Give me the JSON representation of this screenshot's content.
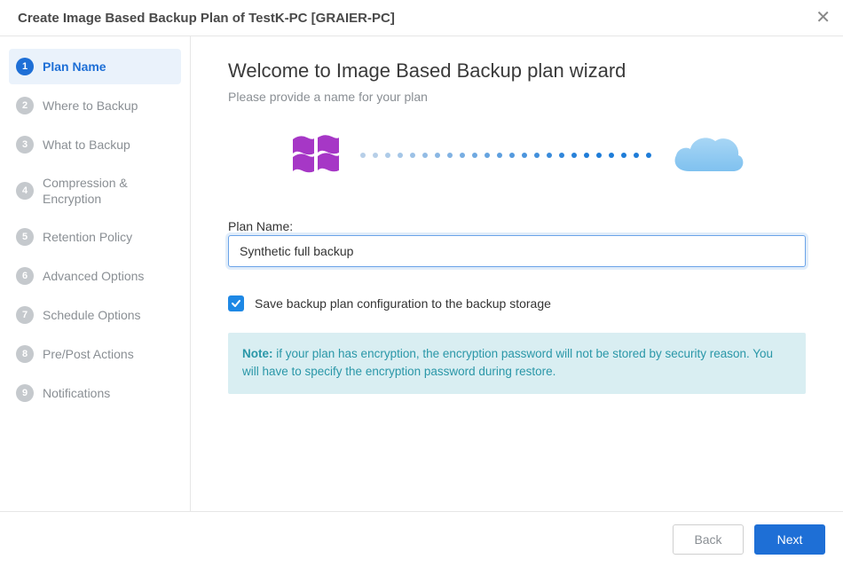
{
  "window": {
    "title": "Create Image Based Backup Plan of TestK-PC [GRAIER-PC]"
  },
  "sidebar": {
    "steps": [
      {
        "num": "1",
        "label": "Plan Name",
        "active": true
      },
      {
        "num": "2",
        "label": "Where to Backup",
        "active": false
      },
      {
        "num": "3",
        "label": "What to Backup",
        "active": false
      },
      {
        "num": "4",
        "label": "Compression & Encryption",
        "active": false
      },
      {
        "num": "5",
        "label": "Retention Policy",
        "active": false
      },
      {
        "num": "6",
        "label": "Advanced Options",
        "active": false
      },
      {
        "num": "7",
        "label": "Schedule Options",
        "active": false
      },
      {
        "num": "8",
        "label": "Pre/Post Actions",
        "active": false
      },
      {
        "num": "9",
        "label": "Notifications",
        "active": false
      }
    ]
  },
  "main": {
    "title": "Welcome to Image Based Backup plan wizard",
    "subtitle": "Please provide a name for your plan",
    "plan_name_label": "Plan Name:",
    "plan_name_value": "Synthetic full backup",
    "save_config_checked": true,
    "save_config_label": "Save backup plan configuration to the backup storage",
    "note_prefix": "Note:",
    "note_text": " if your plan has encryption, the encryption password will not be stored by security reason. You will have to specify the encryption password during restore."
  },
  "illustration": {
    "win_logo_color": "#a637c6",
    "cloud_color_top": "#a8d6f5",
    "cloud_color_bottom": "#7fc1ef",
    "dot_colors": [
      "#b7cfe8",
      "#b7cfe8",
      "#aecbe8",
      "#a5c6e7",
      "#9cc1e6",
      "#93bce5",
      "#8ab7e4",
      "#81b2e3",
      "#78aee2",
      "#6fa9e1",
      "#66a4e0",
      "#5d9fdf",
      "#549ade",
      "#4b95dd",
      "#4290dc",
      "#398bdb",
      "#3086da",
      "#2781d9",
      "#1e7cd8",
      "#1e7cd8",
      "#1e7cd8",
      "#1e7cd8",
      "#1e7cd8",
      "#1e7cd8"
    ]
  },
  "footer": {
    "back_label": "Back",
    "next_label": "Next"
  },
  "colors": {
    "accent": "#1e6fd6",
    "step_inactive": "#c5c9cd",
    "text_muted": "#8a8f94",
    "note_bg": "#d9eef2",
    "note_text": "#2a97a8"
  }
}
